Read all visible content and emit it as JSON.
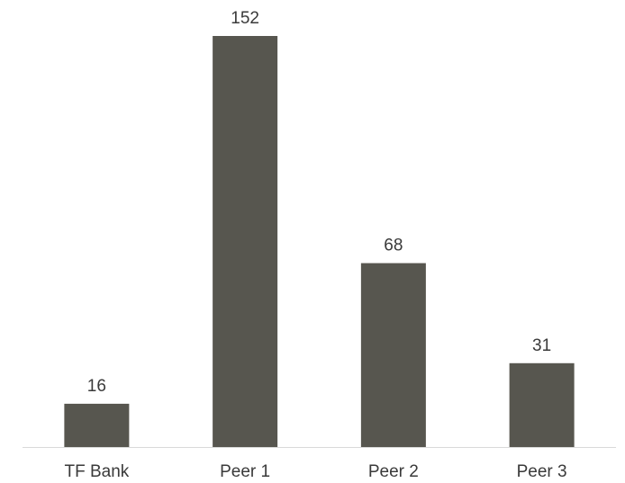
{
  "chart_data": {
    "type": "bar",
    "categories": [
      "TF Bank",
      "Peer 1",
      "Peer 2",
      "Peer 3"
    ],
    "values": [
      16,
      152,
      68,
      31
    ],
    "data_labels": [
      "16",
      "152",
      "68",
      "31"
    ],
    "title": "",
    "xlabel": "",
    "ylabel": "",
    "ylim": [
      0,
      152
    ],
    "grid": false,
    "legend": "none",
    "colors": {
      "bar": "#57564f",
      "axis": "#d9d9d9",
      "text": "#3a3a3a"
    }
  }
}
